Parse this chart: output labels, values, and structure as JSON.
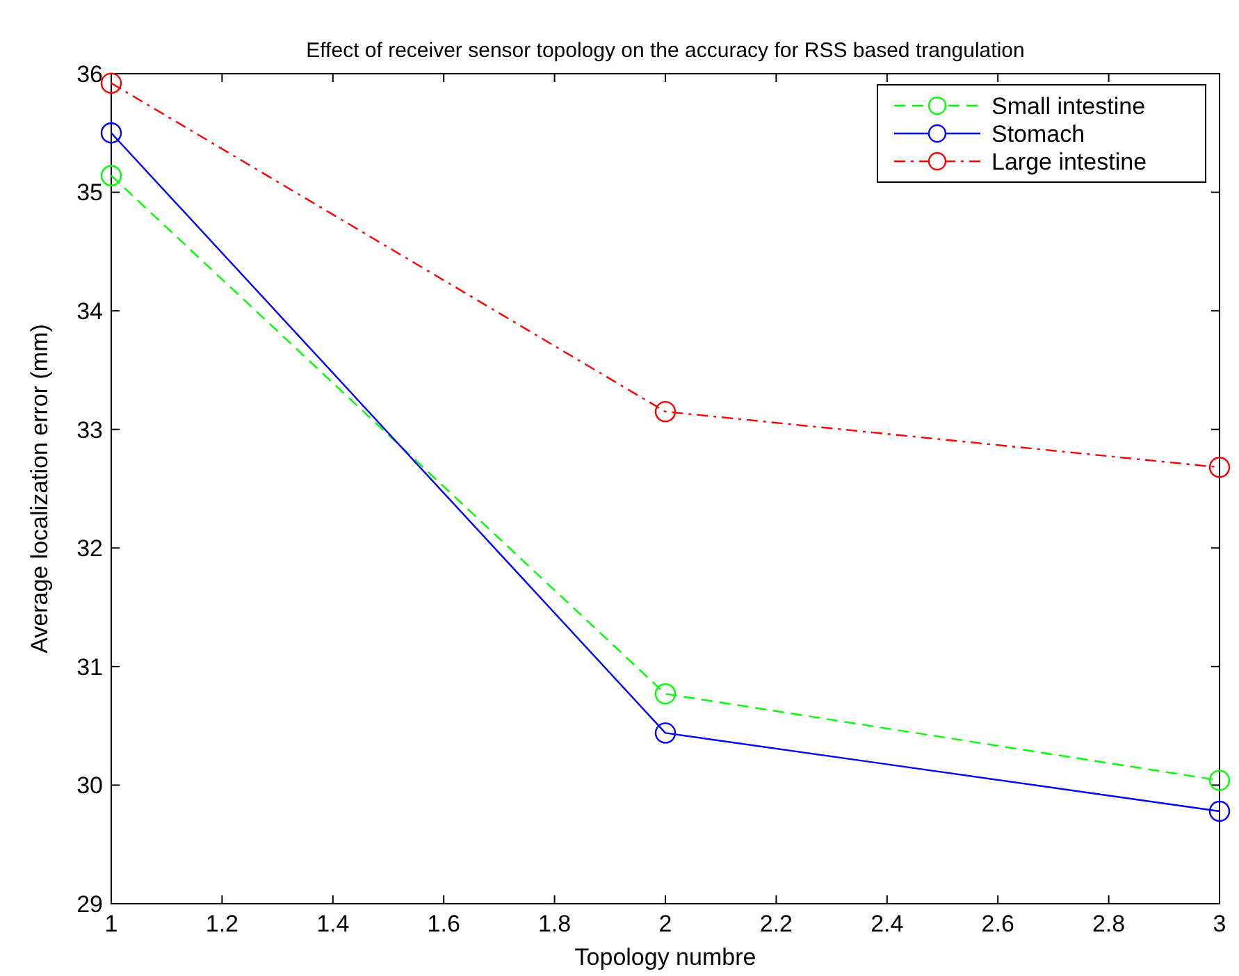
{
  "chart_data": {
    "type": "line",
    "title": "Effect of receiver sensor topology on the accuracy for RSS based trangulation",
    "xlabel": "Topology numbre",
    "ylabel": "Average localization error (mm)",
    "x": [
      1,
      2,
      3
    ],
    "series": [
      {
        "name": "Small intestine",
        "color": "#00ff00",
        "values": [
          35.14,
          30.77,
          30.04
        ],
        "line_style": "dashed"
      },
      {
        "name": "Stomach",
        "color": "#0000ff",
        "values": [
          35.5,
          30.44,
          29.78
        ],
        "line_style": "solid"
      },
      {
        "name": "Large intestine",
        "color": "#ff0000",
        "values": [
          35.92,
          33.15,
          32.68
        ],
        "line_style": "dashdot"
      }
    ],
    "xlim": [
      1,
      3
    ],
    "xticks": [
      1,
      1.2,
      1.4,
      1.6,
      1.8,
      2,
      2.2,
      2.4,
      2.6,
      2.8,
      3
    ],
    "ylim": [
      29,
      36
    ],
    "yticks": [
      29,
      30,
      31,
      32,
      33,
      34,
      35,
      36
    ],
    "grid": false,
    "legend": "top right",
    "marker": "circle"
  }
}
